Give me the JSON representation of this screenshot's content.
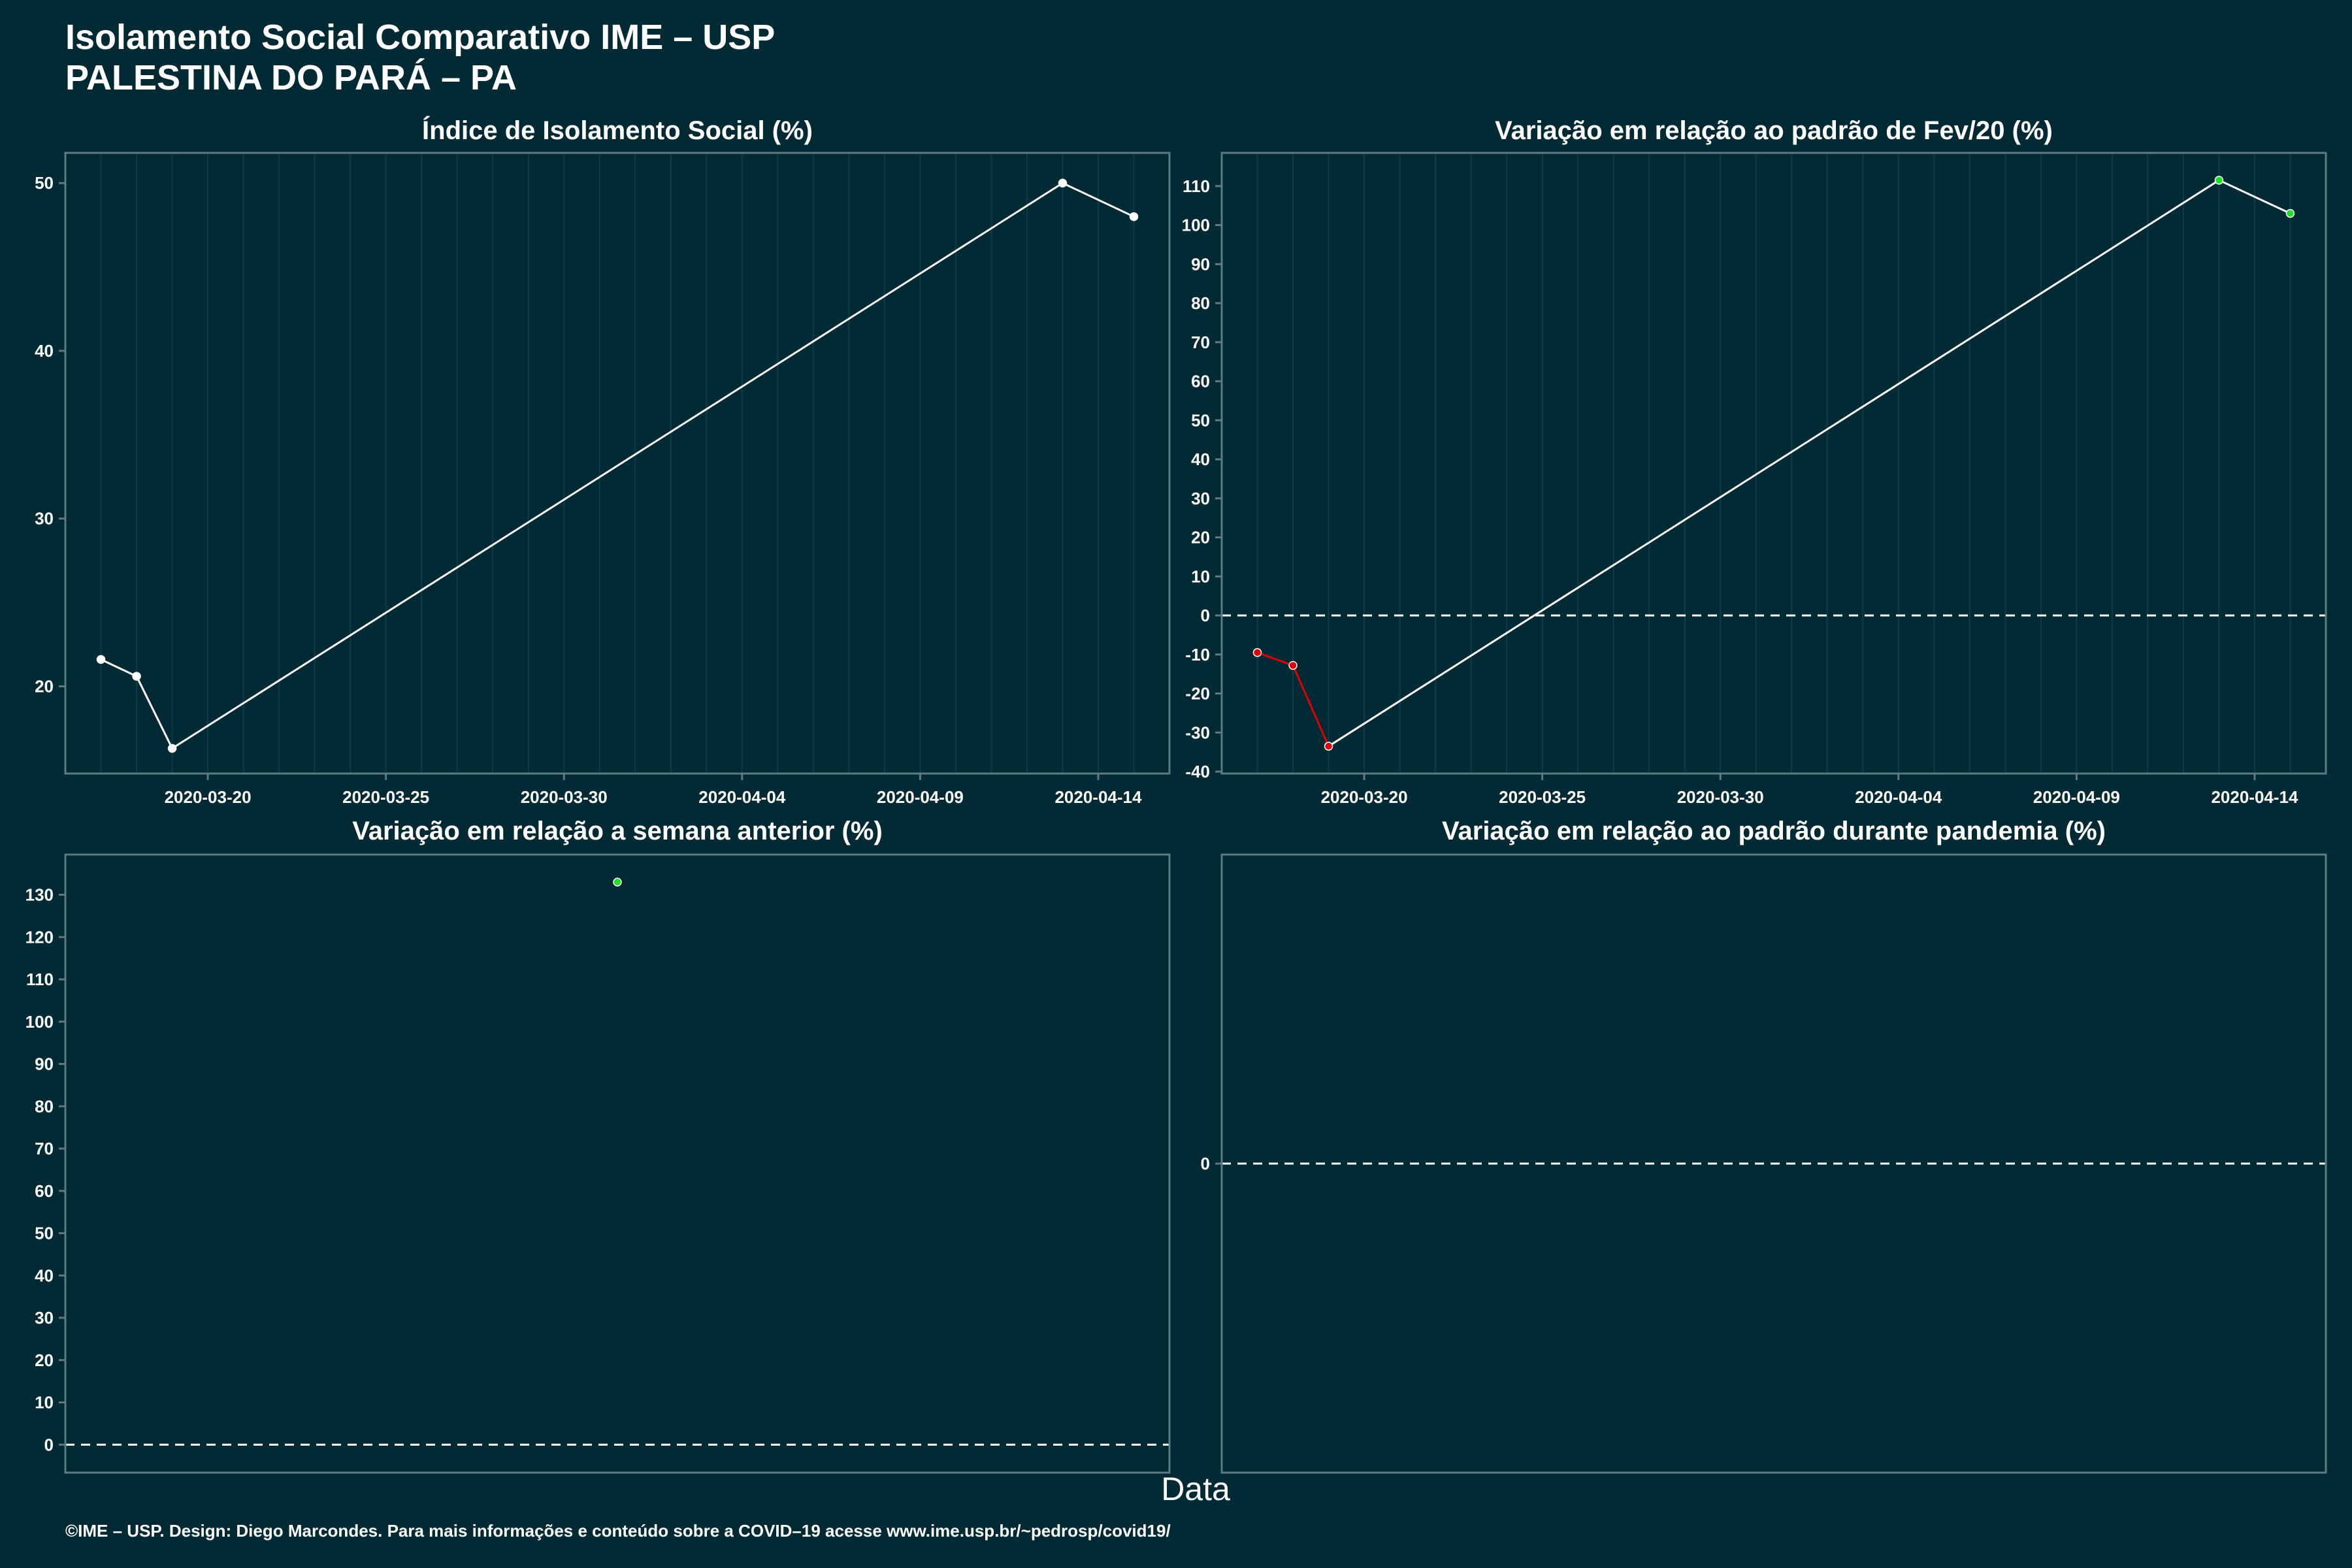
{
  "header": {
    "title": "Isolamento Social Comparativo IME – USP",
    "subtitle": "PALESTINA DO PARÁ – PA"
  },
  "footer": {
    "xlabel": "Data",
    "caption": "©IME – USP. Design: Diego Marcondes. Para mais informações e conteúdo sobre a COVID–19 acesse www.ime.usp.br/~pedrosp/covid19/"
  },
  "colors": {
    "background": "#022a35",
    "line": "#ffffff",
    "negative": "#e00000",
    "positive": "#22e022",
    "frame": "#5f7b82",
    "grid": "#0d3b47"
  },
  "chart_data": [
    {
      "type": "line",
      "title": "Índice de Isolamento Social (%)",
      "x": [
        "2020-03-17",
        "2020-03-18",
        "2020-03-19",
        "2020-04-13",
        "2020-04-15"
      ],
      "y": [
        21.6,
        20.6,
        16.3,
        50.0,
        48.0
      ],
      "point_color": "line",
      "xlim": [
        "2020-03-16",
        "2020-04-16"
      ],
      "ylim": [
        14.8,
        51.8
      ],
      "xticks": [
        "2020-03-20",
        "2020-03-25",
        "2020-03-30",
        "2020-04-04",
        "2020-04-09",
        "2020-04-14"
      ],
      "yticks": [
        20,
        30,
        40,
        50
      ],
      "zero_line": false
    },
    {
      "type": "line",
      "title": "Variação em relação ao padrão de Fev/20 (%)",
      "x": [
        "2020-03-17",
        "2020-03-18",
        "2020-03-19",
        "2020-04-13",
        "2020-04-15"
      ],
      "y": [
        -9.5,
        -12.8,
        -33.5,
        111.5,
        103.0
      ],
      "point_color": "sign",
      "xlim": [
        "2020-03-16",
        "2020-04-16"
      ],
      "ylim": [
        -40.5,
        118.5
      ],
      "xticks": [
        "2020-03-20",
        "2020-03-25",
        "2020-03-30",
        "2020-04-04",
        "2020-04-09",
        "2020-04-14"
      ],
      "yticks": [
        -40,
        -30,
        -20,
        -10,
        0,
        10,
        20,
        30,
        40,
        50,
        60,
        70,
        80,
        90,
        100,
        110
      ],
      "zero_line": true
    },
    {
      "type": "scatter",
      "title": "Variação em relação a semana anterior (%)",
      "x": [
        0.5
      ],
      "y": [
        133
      ],
      "point_color": "sign",
      "xlim": [
        0,
        1
      ],
      "ylim": [
        -6.6,
        139.5
      ],
      "xticks": [],
      "yticks": [
        0,
        10,
        20,
        30,
        40,
        50,
        60,
        70,
        80,
        90,
        100,
        110,
        120,
        130
      ],
      "zero_line": true
    },
    {
      "type": "scatter",
      "title": "Variação em relação ao padrão durante pandemia (%)",
      "x": [],
      "y": [],
      "point_color": "sign",
      "xlim": [
        0,
        1
      ],
      "ylim": [
        -1,
        1
      ],
      "xticks": [],
      "yticks": [
        0
      ],
      "zero_line": true
    }
  ]
}
